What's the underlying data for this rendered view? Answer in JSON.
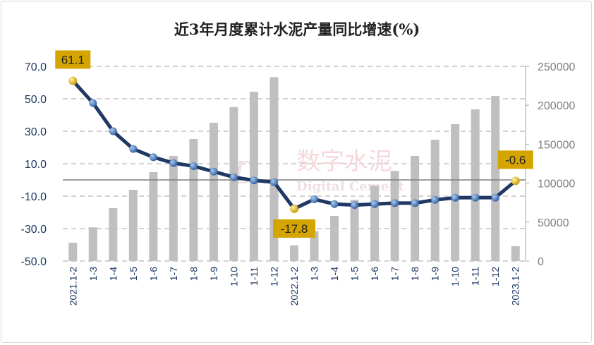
{
  "chart_data": {
    "type": "bar+line",
    "title": "近3年月度累计水泥产量同比增速(%)",
    "categories": [
      "2021.1-2",
      "1-3",
      "1-4",
      "1-5",
      "1-6",
      "1-7",
      "1-8",
      "1-9",
      "1-10",
      "1-11",
      "1-12",
      "2022.1-2",
      "1-3",
      "1-4",
      "1-5",
      "1-6",
      "1-7",
      "1-8",
      "1-9",
      "1-10",
      "1-11",
      "1-12",
      "2023.1-2"
    ],
    "series": [
      {
        "type": "bar",
        "axis": "right",
        "color": "#bfbfbf",
        "values": [
          23500,
          43200,
          67900,
          91500,
          114100,
          135000,
          156700,
          177500,
          197700,
          217400,
          236100,
          20200,
          38300,
          58000,
          78500,
          96600,
          115700,
          135000,
          155800,
          175700,
          194700,
          212000,
          19000
        ]
      },
      {
        "type": "line",
        "axis": "left",
        "color": "#1f3864",
        "marker_color": "#4a7ebb",
        "highlight_color": "#f0c000",
        "values": [
          61.1,
          47.4,
          30.0,
          19.1,
          14.0,
          10.4,
          8.5,
          5.1,
          1.7,
          -0.3,
          -1.4,
          -17.8,
          -11.9,
          -14.9,
          -15.5,
          -14.9,
          -14.3,
          -14.3,
          -12.3,
          -11.0,
          -10.9,
          -10.9,
          -0.6
        ]
      }
    ],
    "data_labels": [
      {
        "index": 0,
        "text": "61.1"
      },
      {
        "index": 11,
        "text": "-17.8"
      },
      {
        "index": 22,
        "text": "-0.6"
      }
    ],
    "left_axis": {
      "min": -50,
      "max": 70,
      "ticks": [
        "70.0",
        "50.0",
        "30.0",
        "10.0",
        "-10.0",
        "-30.0",
        "-50.0"
      ],
      "tick_values": [
        70,
        50,
        30,
        10,
        -10,
        -30,
        -50
      ]
    },
    "right_axis": {
      "min": 0,
      "max": 250000,
      "ticks": [
        "250000",
        "200000",
        "150000",
        "100000",
        "50000",
        "0"
      ],
      "tick_values": [
        250000,
        200000,
        150000,
        100000,
        50000,
        0
      ]
    },
    "grid": true,
    "label_bg_color": "#d4a400",
    "axis_text_color": "#1f3864"
  },
  "watermark": {
    "cn": "数字水泥",
    "en": "Digital Cement"
  }
}
